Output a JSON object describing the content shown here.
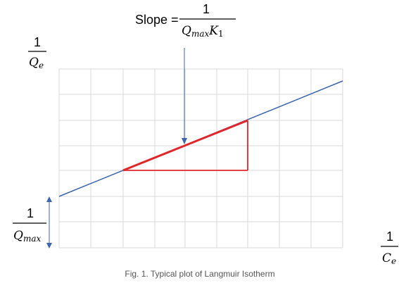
{
  "labels": {
    "slope_prefix": "Slope = ",
    "slope_numerator": "1",
    "slope_denominator_main1": "Q",
    "slope_denominator_sub1": "max",
    "slope_denominator_main2": "K",
    "slope_denominator_sub2": "1",
    "y_axis_numerator": "1",
    "y_axis_denominator_main": "Q",
    "y_axis_denominator_sub": "e",
    "x_axis_numerator": "1",
    "x_axis_denominator_main": "C",
    "x_axis_denominator_sub": "e",
    "intercept_numerator": "1",
    "intercept_denominator_main": "Q",
    "intercept_denominator_sub": "max",
    "caption": "Fig. 1. Typical plot of Langmuir Isotherm"
  },
  "colors": {
    "grid": "#d9d9d9",
    "line": "#3a66b0",
    "triangle": "#e0262a",
    "arrow": "#3a66b0",
    "text": "#000000",
    "caption": "#555555"
  }
}
